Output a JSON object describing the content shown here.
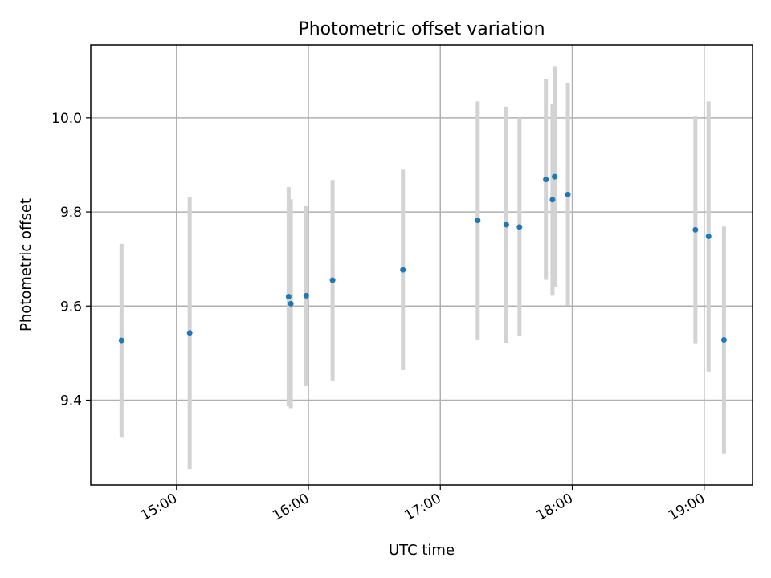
{
  "chart_data": {
    "type": "scatter",
    "title": "Photometric offset variation",
    "xlabel": "UTC time",
    "ylabel": "Photometric offset",
    "x_unit": "UTC time (HH:MM)",
    "xlim": [
      "14:21",
      "19:22"
    ],
    "ylim": [
      9.22,
      10.155
    ],
    "x_ticks": [
      "15:00",
      "16:00",
      "17:00",
      "18:00",
      "19:00"
    ],
    "y_ticks": [
      9.4,
      9.6,
      9.8,
      10.0
    ],
    "y_tick_labels": [
      "9.4",
      "9.6",
      "9.8",
      "10.0"
    ],
    "grid": true,
    "error_bars": "vertical",
    "colors": {
      "point": "#1f77b4",
      "error_bar": "#d3d3d3"
    },
    "points": [
      {
        "x": "14:35",
        "y": 9.527,
        "yerr": 0.205
      },
      {
        "x": "15:06",
        "y": 9.543,
        "yerr": 0.289
      },
      {
        "x": "15:51",
        "y": 9.62,
        "yerr": 0.233
      },
      {
        "x": "15:52",
        "y": 9.605,
        "yerr": 0.222
      },
      {
        "x": "15:59",
        "y": 9.622,
        "yerr": 0.192
      },
      {
        "x": "16:11",
        "y": 9.655,
        "yerr": 0.213
      },
      {
        "x": "16:43",
        "y": 9.677,
        "yerr": 0.213
      },
      {
        "x": "17:17",
        "y": 9.782,
        "yerr": 0.253
      },
      {
        "x": "17:30",
        "y": 9.773,
        "yerr": 0.251
      },
      {
        "x": "17:36",
        "y": 9.768,
        "yerr": 0.232
      },
      {
        "x": "17:48",
        "y": 9.869,
        "yerr": 0.213
      },
      {
        "x": "17:51",
        "y": 9.826,
        "yerr": 0.204
      },
      {
        "x": "17:52",
        "y": 9.875,
        "yerr": 0.235
      },
      {
        "x": "17:58",
        "y": 9.837,
        "yerr": 0.236
      },
      {
        "x": "18:56",
        "y": 9.762,
        "yerr": 0.241
      },
      {
        "x": "19:02",
        "y": 9.748,
        "yerr": 0.287
      },
      {
        "x": "19:09",
        "y": 9.528,
        "yerr": 0.241
      }
    ]
  }
}
